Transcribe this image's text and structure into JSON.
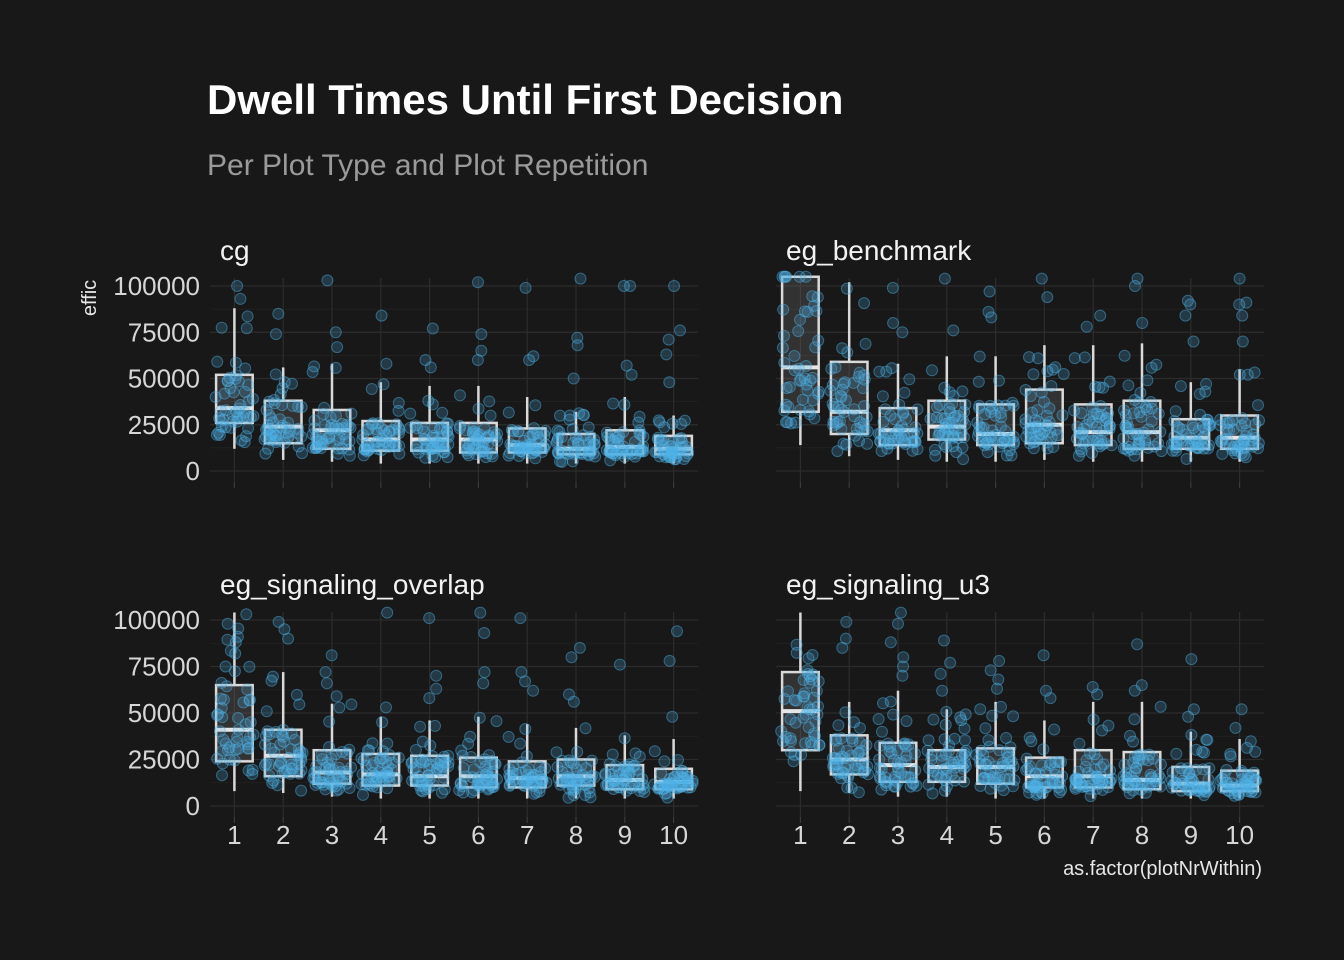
{
  "title": "Dwell Times Until First Decision",
  "subtitle": "Per Plot Type and Plot Repetition",
  "colors": {
    "background": "#181818",
    "points": "#4fb3e6",
    "box": "#d9d9d9",
    "grid": "#2c2c2c"
  },
  "chart_data": {
    "type": "boxplot",
    "facet_variable": "plot type",
    "xlabel": "as.factor(plotNrWithin)",
    "ylabel": "effic",
    "categories": [
      "1",
      "2",
      "3",
      "4",
      "5",
      "6",
      "7",
      "8",
      "9",
      "10"
    ],
    "yticks": [
      0,
      25000,
      50000,
      75000,
      100000
    ],
    "ytick_labels": [
      "0",
      "25000",
      "50000",
      "75000",
      "100000"
    ],
    "ylim": [
      0,
      105000
    ],
    "grid": true,
    "legend": "none",
    "overlay": "jittered points",
    "panels": [
      {
        "name": "cg",
        "boxes": [
          {
            "q1": 26000,
            "median": 34000,
            "q3": 52000,
            "lo": 12000,
            "hi": 88000
          },
          {
            "q1": 15000,
            "median": 24000,
            "q3": 38000,
            "lo": 6000,
            "hi": 56000
          },
          {
            "q1": 12000,
            "median": 22000,
            "q3": 33000,
            "lo": 5000,
            "hi": 58000
          },
          {
            "q1": 11000,
            "median": 17000,
            "q3": 27000,
            "lo": 4000,
            "hi": 48000
          },
          {
            "q1": 11000,
            "median": 17000,
            "q3": 26000,
            "lo": 4000,
            "hi": 46000
          },
          {
            "q1": 10000,
            "median": 17000,
            "q3": 26000,
            "lo": 4000,
            "hi": 46000
          },
          {
            "q1": 10000,
            "median": 14000,
            "q3": 23000,
            "lo": 4000,
            "hi": 40000
          },
          {
            "q1": 9000,
            "median": 12000,
            "q3": 20000,
            "lo": 4000,
            "hi": 32000
          },
          {
            "q1": 9000,
            "median": 13000,
            "q3": 22000,
            "lo": 4000,
            "hi": 40000
          },
          {
            "q1": 9000,
            "median": 12000,
            "q3": 19000,
            "lo": 4000,
            "hi": 30000
          }
        ],
        "outliers": [
          [
            93000,
            100000
          ],
          [
            85000,
            74000
          ],
          [
            103000,
            75000,
            67000
          ],
          [
            84000,
            58000
          ],
          [
            77000,
            60000,
            56000
          ],
          [
            102000,
            74000,
            65000,
            60000
          ],
          [
            99000,
            62000,
            60000
          ],
          [
            104000,
            72000,
            68000,
            50000
          ],
          [
            100000,
            100000,
            57000,
            52000
          ],
          [
            100000,
            76000,
            71000,
            63000,
            48000
          ]
        ]
      },
      {
        "name": "eg_benchmark",
        "boxes": [
          {
            "q1": 32000,
            "median": 56000,
            "q3": 105000,
            "lo": 14000,
            "hi": 105000
          },
          {
            "q1": 20000,
            "median": 32000,
            "q3": 59000,
            "lo": 8000,
            "hi": 102000
          },
          {
            "q1": 14000,
            "median": 22000,
            "q3": 34000,
            "lo": 6000,
            "hi": 58000
          },
          {
            "q1": 17000,
            "median": 24000,
            "q3": 38000,
            "lo": 5000,
            "hi": 62000
          },
          {
            "q1": 14000,
            "median": 20000,
            "q3": 36000,
            "lo": 5000,
            "hi": 62000
          },
          {
            "q1": 15000,
            "median": 25000,
            "q3": 44000,
            "lo": 6000,
            "hi": 68000
          },
          {
            "q1": 14000,
            "median": 21000,
            "q3": 36000,
            "lo": 5000,
            "hi": 68000
          },
          {
            "q1": 12000,
            "median": 21000,
            "q3": 38000,
            "lo": 5000,
            "hi": 69000
          },
          {
            "q1": 12000,
            "median": 18000,
            "q3": 28000,
            "lo": 5000,
            "hi": 48000
          },
          {
            "q1": 12000,
            "median": 18000,
            "q3": 30000,
            "lo": 5000,
            "hi": 55000
          }
        ],
        "outliers": [
          [],
          [],
          [
            99000,
            80000,
            75000
          ],
          [
            104000,
            76000
          ],
          [
            97000,
            86000,
            83000
          ],
          [
            104000,
            94000
          ],
          [
            84000,
            78000
          ],
          [
            104000,
            100000,
            80000
          ],
          [
            92000,
            90000,
            84000,
            70000
          ],
          [
            104000,
            91000,
            90000,
            84000,
            70000
          ]
        ]
      },
      {
        "name": "eg_signaling_overlap",
        "boxes": [
          {
            "q1": 24000,
            "median": 41000,
            "q3": 65000,
            "lo": 8000,
            "hi": 104000
          },
          {
            "q1": 16000,
            "median": 27000,
            "q3": 41000,
            "lo": 7000,
            "hi": 72000
          },
          {
            "q1": 12000,
            "median": 18000,
            "q3": 30000,
            "lo": 5000,
            "hi": 55000
          },
          {
            "q1": 11000,
            "median": 17000,
            "q3": 28000,
            "lo": 4000,
            "hi": 48000
          },
          {
            "q1": 11000,
            "median": 16000,
            "q3": 27000,
            "lo": 4000,
            "hi": 46000
          },
          {
            "q1": 10000,
            "median": 16000,
            "q3": 26000,
            "lo": 4000,
            "hi": 48000
          },
          {
            "q1": 10000,
            "median": 15000,
            "q3": 24000,
            "lo": 4000,
            "hi": 44000
          },
          {
            "q1": 11000,
            "median": 16000,
            "q3": 25000,
            "lo": 4000,
            "hi": 42000
          },
          {
            "q1": 9000,
            "median": 14000,
            "q3": 22000,
            "lo": 4000,
            "hi": 38000
          },
          {
            "q1": 9000,
            "median": 13000,
            "q3": 20000,
            "lo": 4000,
            "hi": 36000
          }
        ],
        "outliers": [
          [
            98000,
            88000,
            82000
          ],
          [
            99000,
            95000,
            90000
          ],
          [
            81000,
            72000,
            66000,
            59000
          ],
          [
            104000,
            53000
          ],
          [
            101000,
            70000,
            63000,
            58000
          ],
          [
            104000,
            93000,
            72000,
            66000
          ],
          [
            101000,
            72000,
            67000,
            62000
          ],
          [
            85000,
            80000,
            60000,
            56000
          ],
          [
            76000
          ],
          [
            94000,
            78000,
            48000
          ]
        ]
      },
      {
        "name": "eg_signaling_u3",
        "boxes": [
          {
            "q1": 30000,
            "median": 51000,
            "q3": 72000,
            "lo": 8000,
            "hi": 104000
          },
          {
            "q1": 17000,
            "median": 25000,
            "q3": 38000,
            "lo": 7000,
            "hi": 56000
          },
          {
            "q1": 13000,
            "median": 22000,
            "q3": 34000,
            "lo": 5000,
            "hi": 62000
          },
          {
            "q1": 13000,
            "median": 21000,
            "q3": 30000,
            "lo": 5000,
            "hi": 52000
          },
          {
            "q1": 12000,
            "median": 21000,
            "q3": 31000,
            "lo": 4000,
            "hi": 56000
          },
          {
            "q1": 10000,
            "median": 16000,
            "q3": 26000,
            "lo": 4000,
            "hi": 46000
          },
          {
            "q1": 10000,
            "median": 16000,
            "q3": 30000,
            "lo": 4000,
            "hi": 56000
          },
          {
            "q1": 9000,
            "median": 14000,
            "q3": 29000,
            "lo": 4000,
            "hi": 56000
          },
          {
            "q1": 8000,
            "median": 12000,
            "q3": 21000,
            "lo": 4000,
            "hi": 40000
          },
          {
            "q1": 8000,
            "median": 11000,
            "q3": 19000,
            "lo": 4000,
            "hi": 36000
          }
        ],
        "outliers": [
          [],
          [
            99000,
            90000,
            85000
          ],
          [
            104000,
            98000,
            88000,
            80000,
            75000,
            70000
          ],
          [
            89000,
            77000,
            71000,
            62000
          ],
          [
            78000,
            73000,
            68000,
            63000
          ],
          [
            81000,
            62000,
            58000
          ],
          [
            64000,
            60000
          ],
          [
            87000,
            65000,
            62000
          ],
          [
            79000,
            52000,
            48000
          ],
          [
            52000,
            42000
          ]
        ]
      }
    ]
  }
}
